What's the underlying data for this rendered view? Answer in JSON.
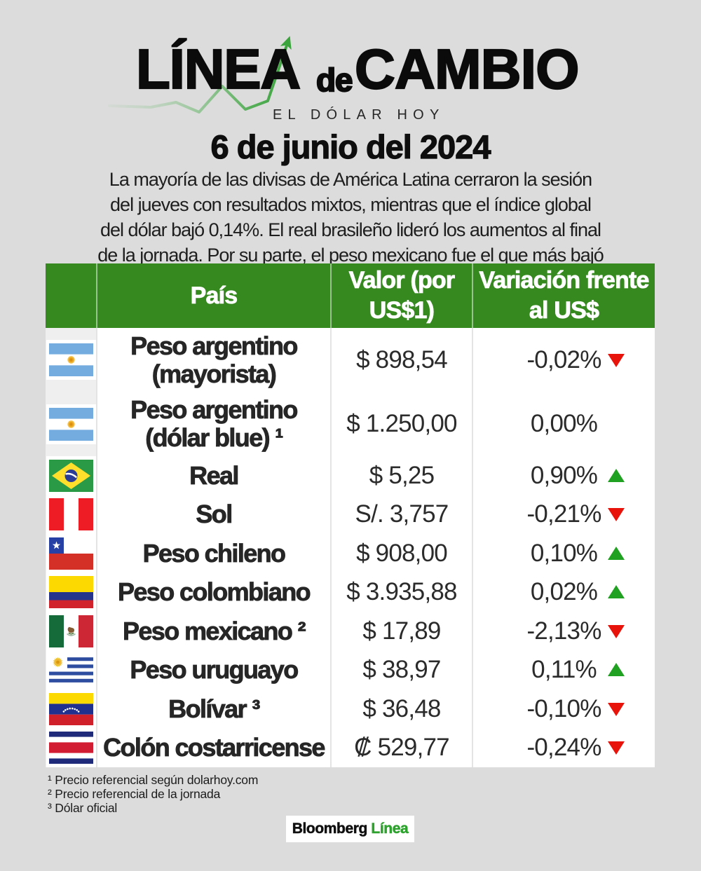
{
  "logo": {
    "title_linea": "LÍNEA",
    "title_de": "de",
    "title_cambio": "CAMBIO",
    "subtitle": "EL DÓLAR HOY",
    "chart_line_color": "#3BA43C"
  },
  "date": "6 de junio del 2024",
  "intro_lines": [
    "La mayoría de las divisas de América Latina cerraron la sesión",
    "del jueves con resultados mixtos, mientras que el índice global",
    "del dólar bajó 0,14%. El real brasileño lideró los aumentos al final",
    "de la jornada. Por su parte, el peso mexicano fue el que más bajó"
  ],
  "table": {
    "header": {
      "country": "País",
      "value_lines": [
        "Valor (por",
        "US$1)"
      ],
      "variation_lines": [
        "Variación frente",
        "al US$"
      ],
      "background": "#35891E"
    },
    "up_color": "#21A121",
    "down_color": "#E8140C",
    "rows": [
      {
        "flag": "flag-argentina",
        "name_lines": [
          "Peso argentino",
          "(mayorista)"
        ],
        "value": "$ 898,54",
        "variation": "-0,02%",
        "direction": "down",
        "tall": true
      },
      {
        "flag": "flag-argentina",
        "name_lines": [
          "Peso argentino",
          "(dólar blue) ¹"
        ],
        "value": "$ 1.250,00",
        "variation": "0,00%",
        "direction": "none",
        "tall": true
      },
      {
        "flag": "flag-brazil",
        "name_lines": [
          "Real"
        ],
        "value": "$ 5,25",
        "variation": "0,90%",
        "direction": "up",
        "tall": false
      },
      {
        "flag": "flag-peru",
        "name_lines": [
          "Sol"
        ],
        "value": "S/. 3,757",
        "variation": "-0,21%",
        "direction": "down",
        "tall": false
      },
      {
        "flag": "flag-chile",
        "name_lines": [
          "Peso chileno"
        ],
        "value": "$ 908,00",
        "variation": "0,10%",
        "direction": "up",
        "tall": false
      },
      {
        "flag": "flag-colombia",
        "name_lines": [
          "Peso colombiano"
        ],
        "value": "$ 3.935,88",
        "variation": "0,02%",
        "direction": "up",
        "tall": false
      },
      {
        "flag": "flag-mexico",
        "name_lines": [
          "Peso mexicano ²"
        ],
        "value": "$ 17,89",
        "variation": "-2,13%",
        "direction": "down",
        "tall": false
      },
      {
        "flag": "flag-uruguay",
        "name_lines": [
          "Peso uruguayo"
        ],
        "value": "$ 38,97",
        "variation": "0,11%",
        "direction": "up",
        "tall": false
      },
      {
        "flag": "flag-venezuela",
        "name_lines": [
          "Bolívar ³"
        ],
        "value": "$ 36,48",
        "variation": "-0,10%",
        "direction": "down",
        "tall": false
      },
      {
        "flag": "flag-costarica",
        "name_lines": [
          "Colón costarricense"
        ],
        "value": "₡ 529,77",
        "variation": "-0,24%",
        "direction": "down",
        "tall": false
      }
    ]
  },
  "footnotes": [
    "¹ Precio referencial según dolarhoy.com",
    "² Precio referencial de la jornada",
    "³ Dólar oficial"
  ],
  "badge": {
    "brand": "Bloomberg",
    "suffix": "Línea",
    "suffix_color": "#2DA32D"
  },
  "chart_data": {
    "type": "table",
    "title": "Línea de Cambio - El Dólar Hoy - 6 de junio del 2024",
    "columns": [
      "País",
      "Valor (por US$1)",
      "Variación frente al US$"
    ],
    "rows": [
      [
        "Peso argentino (mayorista)",
        "$ 898,54",
        "-0,02%",
        "down"
      ],
      [
        "Peso argentino (dólar blue) ¹",
        "$ 1.250,00",
        "0,00%",
        "flat"
      ],
      [
        "Real",
        "$ 5,25",
        "0,90%",
        "up"
      ],
      [
        "Sol",
        "S/. 3,757",
        "-0,21%",
        "down"
      ],
      [
        "Peso chileno",
        "$ 908,00",
        "0,10%",
        "up"
      ],
      [
        "Peso colombiano",
        "$ 3.935,88",
        "0,02%",
        "up"
      ],
      [
        "Peso mexicano ²",
        "$ 17,89",
        "-2,13%",
        "down"
      ],
      [
        "Peso uruguayo",
        "$ 38,97",
        "0,11%",
        "up"
      ],
      [
        "Bolívar ³",
        "$ 36,48",
        "-0,10%",
        "down"
      ],
      [
        "Colón costarricense",
        "₡ 529,77",
        "-0,24%",
        "down"
      ]
    ]
  }
}
